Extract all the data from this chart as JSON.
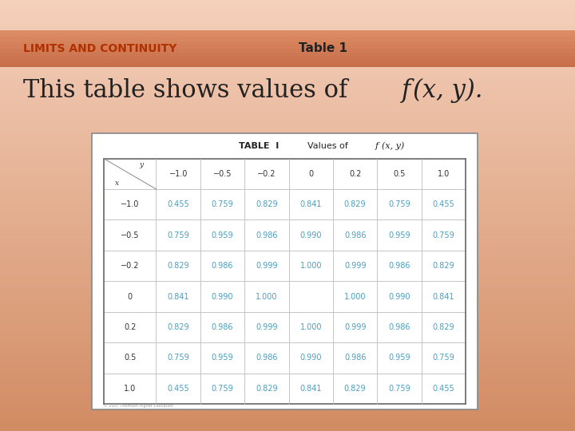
{
  "title_left": "LIMITS AND CONTINUITY",
  "title_right": "Table 1",
  "col_headers": [
    "−1.0",
    "−0.5",
    "−0.2",
    "0",
    "0.2",
    "0.5",
    "1.0"
  ],
  "row_headers": [
    "−1.0",
    "−0.5",
    "−0.2",
    "0",
    "0.2",
    "0.5",
    "1.0"
  ],
  "table_data": [
    [
      "0.455",
      "0.759",
      "0.829",
      "0.841",
      "0.829",
      "0.759",
      "0.455"
    ],
    [
      "0.759",
      "0.959",
      "0.986",
      "0.990",
      "0.986",
      "0.959",
      "0.759"
    ],
    [
      "0.829",
      "0.986",
      "0.999",
      "1.000",
      "0.999",
      "0.986",
      "0.829"
    ],
    [
      "0.841",
      "0.990",
      "1.000",
      "",
      "1.000",
      "0.990",
      "0.841"
    ],
    [
      "0.829",
      "0.986",
      "0.999",
      "1.000",
      "0.999",
      "0.986",
      "0.829"
    ],
    [
      "0.759",
      "0.959",
      "0.986",
      "0.990",
      "0.986",
      "0.959",
      "0.759"
    ],
    [
      "0.455",
      "0.759",
      "0.829",
      "0.841",
      "0.829",
      "0.759",
      "0.455"
    ]
  ],
  "bg_color_main": "#f0c4aa",
  "bar_color": "#d9956e",
  "title_left_color": "#b03000",
  "title_right_color": "#222222",
  "subtitle_color": "#222222",
  "table_bg": "#ffffff",
  "row_header_color": "#333333",
  "col_header_color": "#333333",
  "data_color": "#4a9ec0",
  "table_title_color": "#222222",
  "copyright_color": "#999999"
}
